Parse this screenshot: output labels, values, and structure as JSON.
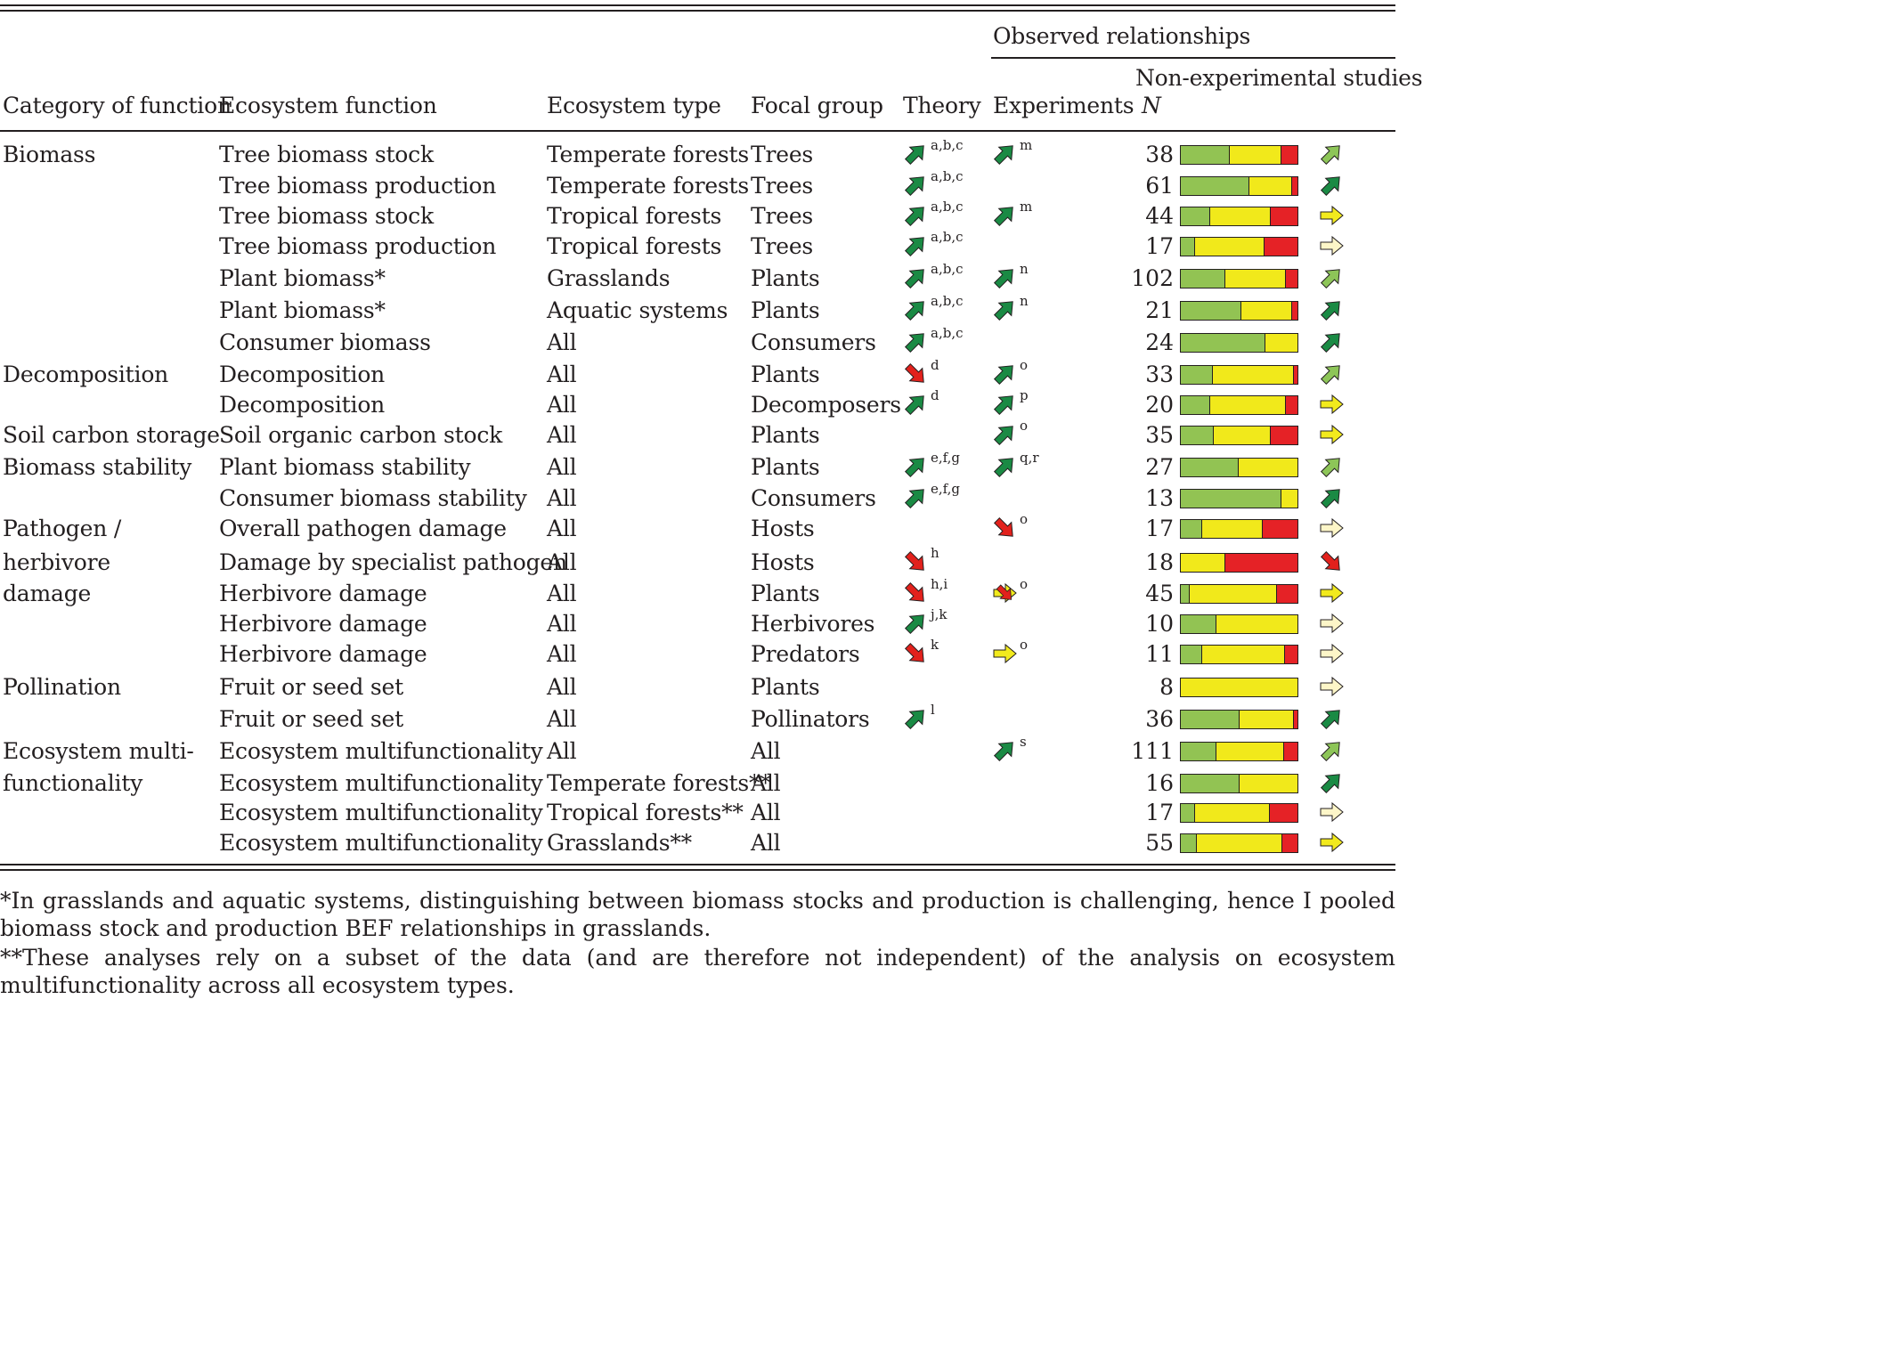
{
  "header": {
    "observed_relationships": "Observed relationships",
    "non_experimental_studies": "Non-experimental studies",
    "n_label": "N",
    "columns": [
      "Category of function",
      "Ecosystem function",
      "Ecosystem type",
      "Focal group",
      "Theory",
      "Experiments"
    ]
  },
  "colors": {
    "positive": "#92c353",
    "neutral": "#f1e91b",
    "negative": "#e52226",
    "strong_pos_arrow": "#1a8a44",
    "weak_pos_arrow": "#8dc558",
    "neutral_arrow": "#f2ea1d",
    "weak_neutral_arrow": "#fdf6c8",
    "negative_arrow": "#e2211c"
  },
  "rows": [
    {
      "category": "Biomass",
      "function": "Tree biomass stock",
      "type": "Temperate forests",
      "group": "Trees",
      "theory": {
        "arrow": "up",
        "refs": "a,b,c"
      },
      "exp": {
        "arrow": "up",
        "refs": "m"
      },
      "n": "38",
      "bar": [
        42,
        44,
        14
      ],
      "obs": "up-light"
    },
    {
      "category": "",
      "function": "Tree biomass production",
      "type": "Temperate forests",
      "group": "Trees",
      "theory": {
        "arrow": "up",
        "refs": "a,b,c"
      },
      "exp": null,
      "n": "61",
      "bar": [
        59,
        36,
        5
      ],
      "obs": "up"
    },
    {
      "category": "",
      "function": "Tree biomass stock",
      "type": "Tropical forests",
      "group": "Trees",
      "theory": {
        "arrow": "up",
        "refs": "a,b,c"
      },
      "exp": {
        "arrow": "up",
        "refs": "m"
      },
      "n": "44",
      "bar": [
        25,
        52,
        23
      ],
      "obs": "right"
    },
    {
      "category": "",
      "function": "Tree biomass production",
      "type": "Tropical forests",
      "group": "Trees",
      "theory": {
        "arrow": "up",
        "refs": "a,b,c"
      },
      "exp": null,
      "n": "17",
      "bar": [
        12,
        59,
        29
      ],
      "obs": "right-pale"
    },
    {
      "category": "",
      "function": "Plant biomass*",
      "type": "Grasslands",
      "group": "Plants",
      "theory": {
        "arrow": "up",
        "refs": "a,b,c"
      },
      "exp": {
        "arrow": "up",
        "refs": "n"
      },
      "n": "102",
      "bar": [
        38,
        52,
        10
      ],
      "obs": "up-light"
    },
    {
      "category": "",
      "function": "Plant biomass*",
      "type": "Aquatic systems",
      "group": "Plants",
      "theory": {
        "arrow": "up",
        "refs": "a,b,c"
      },
      "exp": {
        "arrow": "up",
        "refs": "n"
      },
      "n": "21",
      "bar": [
        52,
        43,
        5
      ],
      "obs": "up"
    },
    {
      "category": "",
      "function": "Consumer biomass",
      "type": "All",
      "group": "Consumers",
      "theory": {
        "arrow": "up",
        "refs": "a,b,c"
      },
      "exp": null,
      "n": "24",
      "bar": [
        72,
        28,
        0
      ],
      "obs": "up"
    },
    {
      "category": "Decomposition",
      "function": "Decomposition",
      "type": "All",
      "group": "Plants",
      "theory": {
        "arrow": "down",
        "refs": "d"
      },
      "exp": {
        "arrow": "up",
        "refs": "o"
      },
      "n": "33",
      "bar": [
        27,
        70,
        3
      ],
      "obs": "up-light"
    },
    {
      "category": "",
      "function": "Decomposition",
      "type": "All",
      "group": "Decomposers",
      "theory": {
        "arrow": "up",
        "refs": "d"
      },
      "exp": {
        "arrow": "up",
        "refs": "p"
      },
      "n": "20",
      "bar": [
        25,
        65,
        10
      ],
      "obs": "right"
    },
    {
      "category": "Soil carbon storage",
      "function": "Soil organic carbon stock",
      "type": "All",
      "group": "Plants",
      "theory": null,
      "exp": {
        "arrow": "up",
        "refs": "o"
      },
      "n": "35",
      "bar": [
        28,
        49,
        23
      ],
      "obs": "right"
    },
    {
      "category": "Biomass stability",
      "function": "Plant biomass stability",
      "type": "All",
      "group": "Plants",
      "theory": {
        "arrow": "up",
        "refs": "e,f,g"
      },
      "exp": {
        "arrow": "up",
        "refs": "q,r"
      },
      "n": "27",
      "bar": [
        49,
        51,
        0
      ],
      "obs": "up-light"
    },
    {
      "category": "",
      "function": "Consumer biomass stability",
      "type": "All",
      "group": "Consumers",
      "theory": {
        "arrow": "up",
        "refs": "e,f,g"
      },
      "exp": null,
      "n": "13",
      "bar": [
        86,
        14,
        0
      ],
      "obs": "up"
    },
    {
      "category": "Pathogen /",
      "function": "Overall pathogen damage",
      "type": "All",
      "group": "Hosts",
      "theory": null,
      "exp": {
        "arrow": "down",
        "refs": "o"
      },
      "n": "17",
      "bar": [
        18,
        52,
        30
      ],
      "obs": "right-pale"
    },
    {
      "category": "herbivore",
      "function": "Damage by specialist pathogen",
      "type": "All",
      "group": "Hosts",
      "theory": {
        "arrow": "down",
        "refs": "h"
      },
      "exp": null,
      "n": "18",
      "bar": [
        0,
        38,
        62
      ],
      "obs": "down"
    },
    {
      "category": "damage",
      "function": "Herbivore damage",
      "type": "All",
      "group": "Plants",
      "theory": {
        "arrow": "down",
        "refs": "h,i"
      },
      "exp": {
        "arrow": "mixed",
        "refs": "o"
      },
      "n": "45",
      "bar": [
        7,
        75,
        18
      ],
      "obs": "right"
    },
    {
      "category": "",
      "function": "Herbivore damage",
      "type": "All",
      "group": "Herbivores",
      "theory": {
        "arrow": "up",
        "refs": "j,k"
      },
      "exp": null,
      "n": "10",
      "bar": [
        30,
        70,
        0
      ],
      "obs": "right-pale"
    },
    {
      "category": "",
      "function": "Herbivore damage",
      "type": "All",
      "group": "Predators",
      "theory": {
        "arrow": "down",
        "refs": "k"
      },
      "exp": {
        "arrow": "right",
        "refs": "o"
      },
      "n": "11",
      "bar": [
        18,
        71,
        11
      ],
      "obs": "right-pale"
    },
    {
      "category": "Pollination",
      "function": "Fruit or seed set",
      "type": "All",
      "group": "Plants",
      "theory": null,
      "exp": null,
      "n": "8",
      "bar": [
        0,
        100,
        0
      ],
      "obs": "right-pale"
    },
    {
      "category": "",
      "function": "Fruit or seed set",
      "type": "All",
      "group": "Pollinators",
      "theory": {
        "arrow": "up",
        "refs": "l"
      },
      "exp": null,
      "n": "36",
      "bar": [
        50,
        47,
        3
      ],
      "obs": "up"
    },
    {
      "category": "Ecosystem multi-",
      "function": "Ecosystem multifunctionality",
      "type": "All",
      "group": "All",
      "theory": null,
      "exp": {
        "arrow": "up",
        "refs": "s"
      },
      "n": "111",
      "bar": [
        30,
        58,
        12
      ],
      "obs": "up-light"
    },
    {
      "category": "functionality",
      "function": "Ecosystem multifunctionality",
      "type": "Temperate forests**",
      "group": "All",
      "theory": null,
      "exp": null,
      "n": "16",
      "bar": [
        50,
        50,
        0
      ],
      "obs": "up"
    },
    {
      "category": "",
      "function": "Ecosystem multifunctionality",
      "type": "Tropical forests**",
      "group": "All",
      "theory": null,
      "exp": null,
      "n": "17",
      "bar": [
        12,
        64,
        24
      ],
      "obs": "right-pale"
    },
    {
      "category": "",
      "function": "Ecosystem multifunctionality",
      "type": "Grasslands**",
      "group": "All",
      "theory": null,
      "exp": null,
      "n": "55",
      "bar": [
        13,
        74,
        13
      ],
      "obs": "right"
    }
  ],
  "footnotes": [
    "*In grasslands and aquatic systems, distinguishing between biomass stocks and production is challenging, hence I pooled biomass stock and production BEF relationships in grasslands.",
    "**These analyses rely on a subset of the data (and are therefore not independent) of the analysis on ecosystem multifunctionality across all ecosystem types."
  ]
}
